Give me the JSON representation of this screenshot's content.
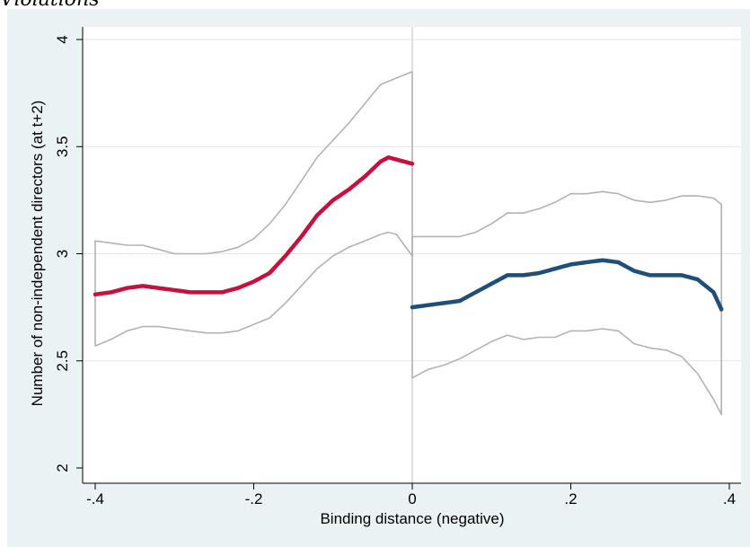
{
  "page": {
    "title": "Violations"
  },
  "chart_data": {
    "type": "line",
    "title": "",
    "xlabel": "Binding distance (negative)",
    "ylabel": "Number of non-independent directors (at t+2)",
    "xlim": [
      -0.4,
      0.4
    ],
    "ylim": [
      2,
      4
    ],
    "xticks": [
      -0.4,
      -0.2,
      0,
      0.2,
      0.4
    ],
    "xtick_labels": [
      "-.4",
      "-.2",
      "0",
      ".2",
      ".4"
    ],
    "yticks": [
      2,
      2.5,
      3,
      3.5,
      4
    ],
    "ytick_labels": [
      "2",
      "2.5",
      "3",
      "3.5",
      "4"
    ],
    "grid": true,
    "cutoff": 0,
    "colors": {
      "left_fit": "#c8103e",
      "right_fit": "#1f4e79",
      "confidence_band": "#b3b3b3",
      "plot_background": "#ffffff",
      "outer_background": "#eaf2f3",
      "grid": "#e6e6e6"
    },
    "series": [
      {
        "role": "left_fit",
        "x": [
          -0.4,
          -0.38,
          -0.36,
          -0.34,
          -0.32,
          -0.3,
          -0.28,
          -0.26,
          -0.24,
          -0.22,
          -0.2,
          -0.18,
          -0.16,
          -0.14,
          -0.12,
          -0.1,
          -0.08,
          -0.06,
          -0.04,
          -0.03,
          -0.02,
          0
        ],
        "y": [
          2.81,
          2.82,
          2.84,
          2.85,
          2.84,
          2.83,
          2.82,
          2.82,
          2.82,
          2.84,
          2.87,
          2.91,
          2.99,
          3.08,
          3.18,
          3.25,
          3.3,
          3.36,
          3.43,
          3.45,
          3.44,
          3.42
        ]
      },
      {
        "role": "left_upper",
        "x": [
          -0.4,
          -0.38,
          -0.36,
          -0.34,
          -0.32,
          -0.3,
          -0.28,
          -0.26,
          -0.24,
          -0.22,
          -0.2,
          -0.18,
          -0.16,
          -0.14,
          -0.12,
          -0.1,
          -0.08,
          -0.06,
          -0.04,
          -0.02,
          0
        ],
        "y": [
          3.06,
          3.05,
          3.04,
          3.04,
          3.02,
          3.0,
          3.0,
          3.0,
          3.01,
          3.03,
          3.07,
          3.14,
          3.23,
          3.34,
          3.45,
          3.53,
          3.61,
          3.7,
          3.79,
          3.82,
          3.85
        ]
      },
      {
        "role": "left_lower",
        "x": [
          -0.4,
          -0.38,
          -0.36,
          -0.34,
          -0.32,
          -0.3,
          -0.28,
          -0.26,
          -0.24,
          -0.22,
          -0.2,
          -0.18,
          -0.16,
          -0.14,
          -0.12,
          -0.1,
          -0.08,
          -0.06,
          -0.04,
          -0.03,
          -0.02,
          0
        ],
        "y": [
          2.57,
          2.6,
          2.64,
          2.66,
          2.66,
          2.65,
          2.64,
          2.63,
          2.63,
          2.64,
          2.67,
          2.7,
          2.77,
          2.85,
          2.93,
          2.99,
          3.03,
          3.06,
          3.09,
          3.1,
          3.09,
          2.99
        ]
      },
      {
        "role": "right_fit",
        "x": [
          0,
          0.02,
          0.04,
          0.06,
          0.08,
          0.1,
          0.12,
          0.14,
          0.16,
          0.18,
          0.2,
          0.22,
          0.24,
          0.26,
          0.28,
          0.3,
          0.32,
          0.34,
          0.36,
          0.38,
          0.39
        ],
        "y": [
          2.75,
          2.76,
          2.77,
          2.78,
          2.82,
          2.86,
          2.9,
          2.9,
          2.91,
          2.93,
          2.95,
          2.96,
          2.97,
          2.96,
          2.92,
          2.9,
          2.9,
          2.9,
          2.88,
          2.82,
          2.74
        ]
      },
      {
        "role": "right_upper",
        "x": [
          0,
          0.02,
          0.04,
          0.06,
          0.08,
          0.1,
          0.12,
          0.14,
          0.16,
          0.18,
          0.2,
          0.22,
          0.24,
          0.26,
          0.28,
          0.3,
          0.32,
          0.34,
          0.36,
          0.38,
          0.39
        ],
        "y": [
          3.08,
          3.08,
          3.08,
          3.08,
          3.1,
          3.14,
          3.19,
          3.19,
          3.21,
          3.24,
          3.28,
          3.28,
          3.29,
          3.28,
          3.25,
          3.24,
          3.25,
          3.27,
          3.27,
          3.26,
          3.23
        ]
      },
      {
        "role": "right_lower",
        "x": [
          0,
          0.02,
          0.04,
          0.06,
          0.08,
          0.1,
          0.12,
          0.14,
          0.16,
          0.18,
          0.2,
          0.22,
          0.24,
          0.26,
          0.28,
          0.3,
          0.32,
          0.34,
          0.36,
          0.38,
          0.39
        ],
        "y": [
          2.42,
          2.46,
          2.48,
          2.51,
          2.55,
          2.59,
          2.62,
          2.6,
          2.61,
          2.61,
          2.64,
          2.64,
          2.65,
          2.64,
          2.58,
          2.56,
          2.55,
          2.52,
          2.44,
          2.32,
          2.25
        ]
      }
    ]
  }
}
